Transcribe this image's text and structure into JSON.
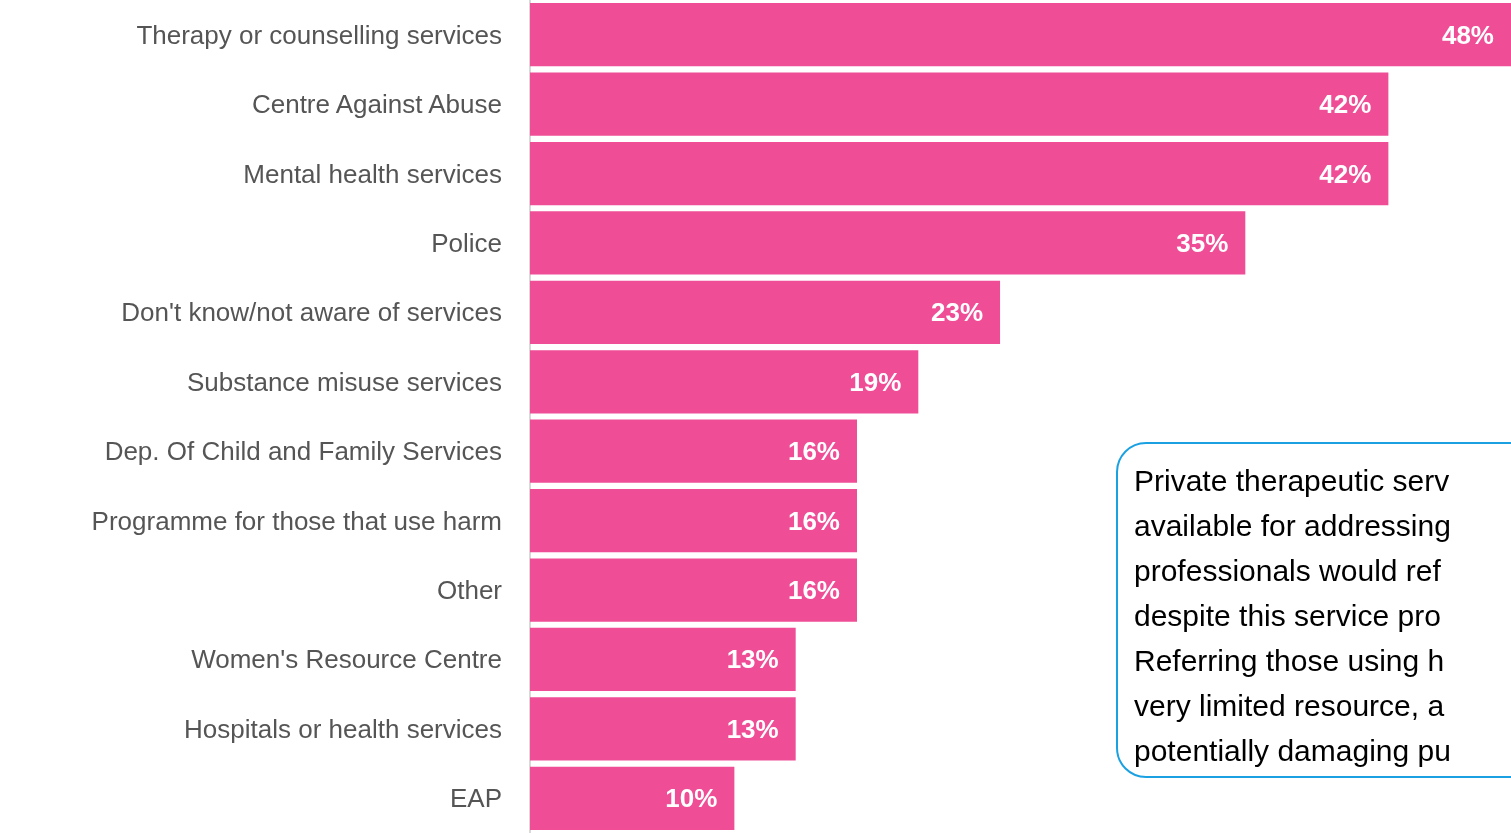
{
  "chart_data": {
    "type": "bar",
    "orientation": "horizontal",
    "categories": [
      "Therapy or counselling services",
      "Centre Against Abuse",
      "Mental health services",
      "Police",
      "Don't know/not aware of services",
      "Substance misuse services",
      "Dep. Of Child and Family Services",
      "Programme for those that use harm",
      "Other",
      "Women's Resource Centre",
      "Hospitals or health services",
      "EAP"
    ],
    "values": [
      48,
      42,
      42,
      35,
      23,
      19,
      16,
      16,
      16,
      13,
      13,
      10
    ],
    "value_labels": [
      "48%",
      "42%",
      "42%",
      "35%",
      "23%",
      "19%",
      "16%",
      "16%",
      "16%",
      "13%",
      "13%",
      "10%"
    ],
    "color": "#ef4e97",
    "grid": false,
    "annotations": [
      "Private therapeutic serv\navailable for addressing\nprofessionals would ref\ndespite this service pro\nReferring those using h\nvery limited resource, a\npotentially damaging pu"
    ]
  }
}
